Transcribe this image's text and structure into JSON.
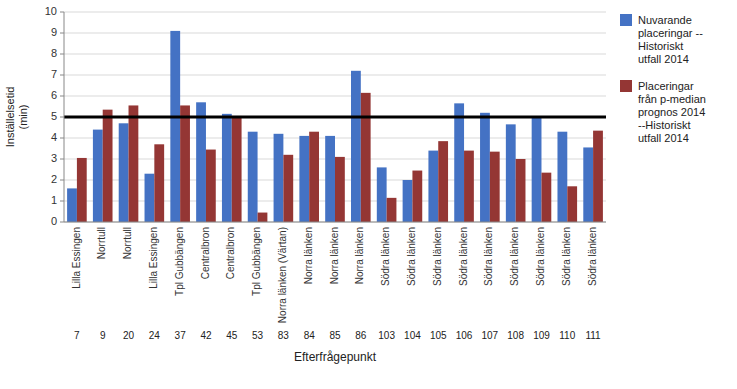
{
  "chart_data": {
    "type": "bar",
    "categories": [
      "Lilla Essingen",
      "Norrtull",
      "Norrtull",
      "Lilla Essingen",
      "Tpl Gubbängen",
      "Centralbron",
      "Centralbron",
      "Tpl Gubbängen",
      "Norra länken (Värtan)",
      "Norra länken",
      "Norra länken",
      "Norra länken",
      "Södra länken",
      "Södra länken",
      "Södra länken",
      "Södra länken",
      "Södra länken",
      "Södra länken",
      "Södra länken",
      "Södra länken",
      "Södra länken"
    ],
    "annotations": [
      "7",
      "9",
      "20",
      "24",
      "37",
      "42",
      "45",
      "53",
      "83",
      "84",
      "85",
      "86",
      "103",
      "104",
      "105",
      "106",
      "107",
      "108",
      "109",
      "110",
      "111"
    ],
    "series": [
      {
        "name": "Nuvarande\nplaceringar --\nHistoriskt\nutfall 2014",
        "color": "#4472C4",
        "values": [
          1.6,
          4.4,
          4.7,
          2.3,
          9.1,
          5.7,
          5.15,
          4.3,
          4.2,
          4.1,
          4.1,
          7.2,
          2.6,
          2.0,
          3.4,
          5.65,
          5.2,
          4.65,
          5.0,
          4.3,
          3.55
        ]
      },
      {
        "name": "Placeringar\nfrån p-median\nprognos 2014\n--Historiskt\nutfall 2014",
        "color": "#943634",
        "values": [
          3.05,
          5.35,
          5.55,
          3.7,
          5.55,
          3.45,
          5.05,
          0.45,
          3.2,
          4.3,
          3.1,
          6.15,
          1.15,
          2.45,
          3.85,
          3.4,
          3.35,
          3.0,
          2.35,
          1.7,
          4.35
        ]
      }
    ],
    "reference_lines": [
      {
        "value": 5.0,
        "color": "#000000"
      }
    ],
    "xlabel": "Efterfrågepunkt",
    "ylabel": "Inställelsetid\n(min)",
    "ylim": [
      0,
      10
    ],
    "yticks": [
      0,
      1,
      2,
      3,
      4,
      5,
      6,
      7,
      8,
      9,
      10
    ],
    "grid": true,
    "legend": "right"
  }
}
